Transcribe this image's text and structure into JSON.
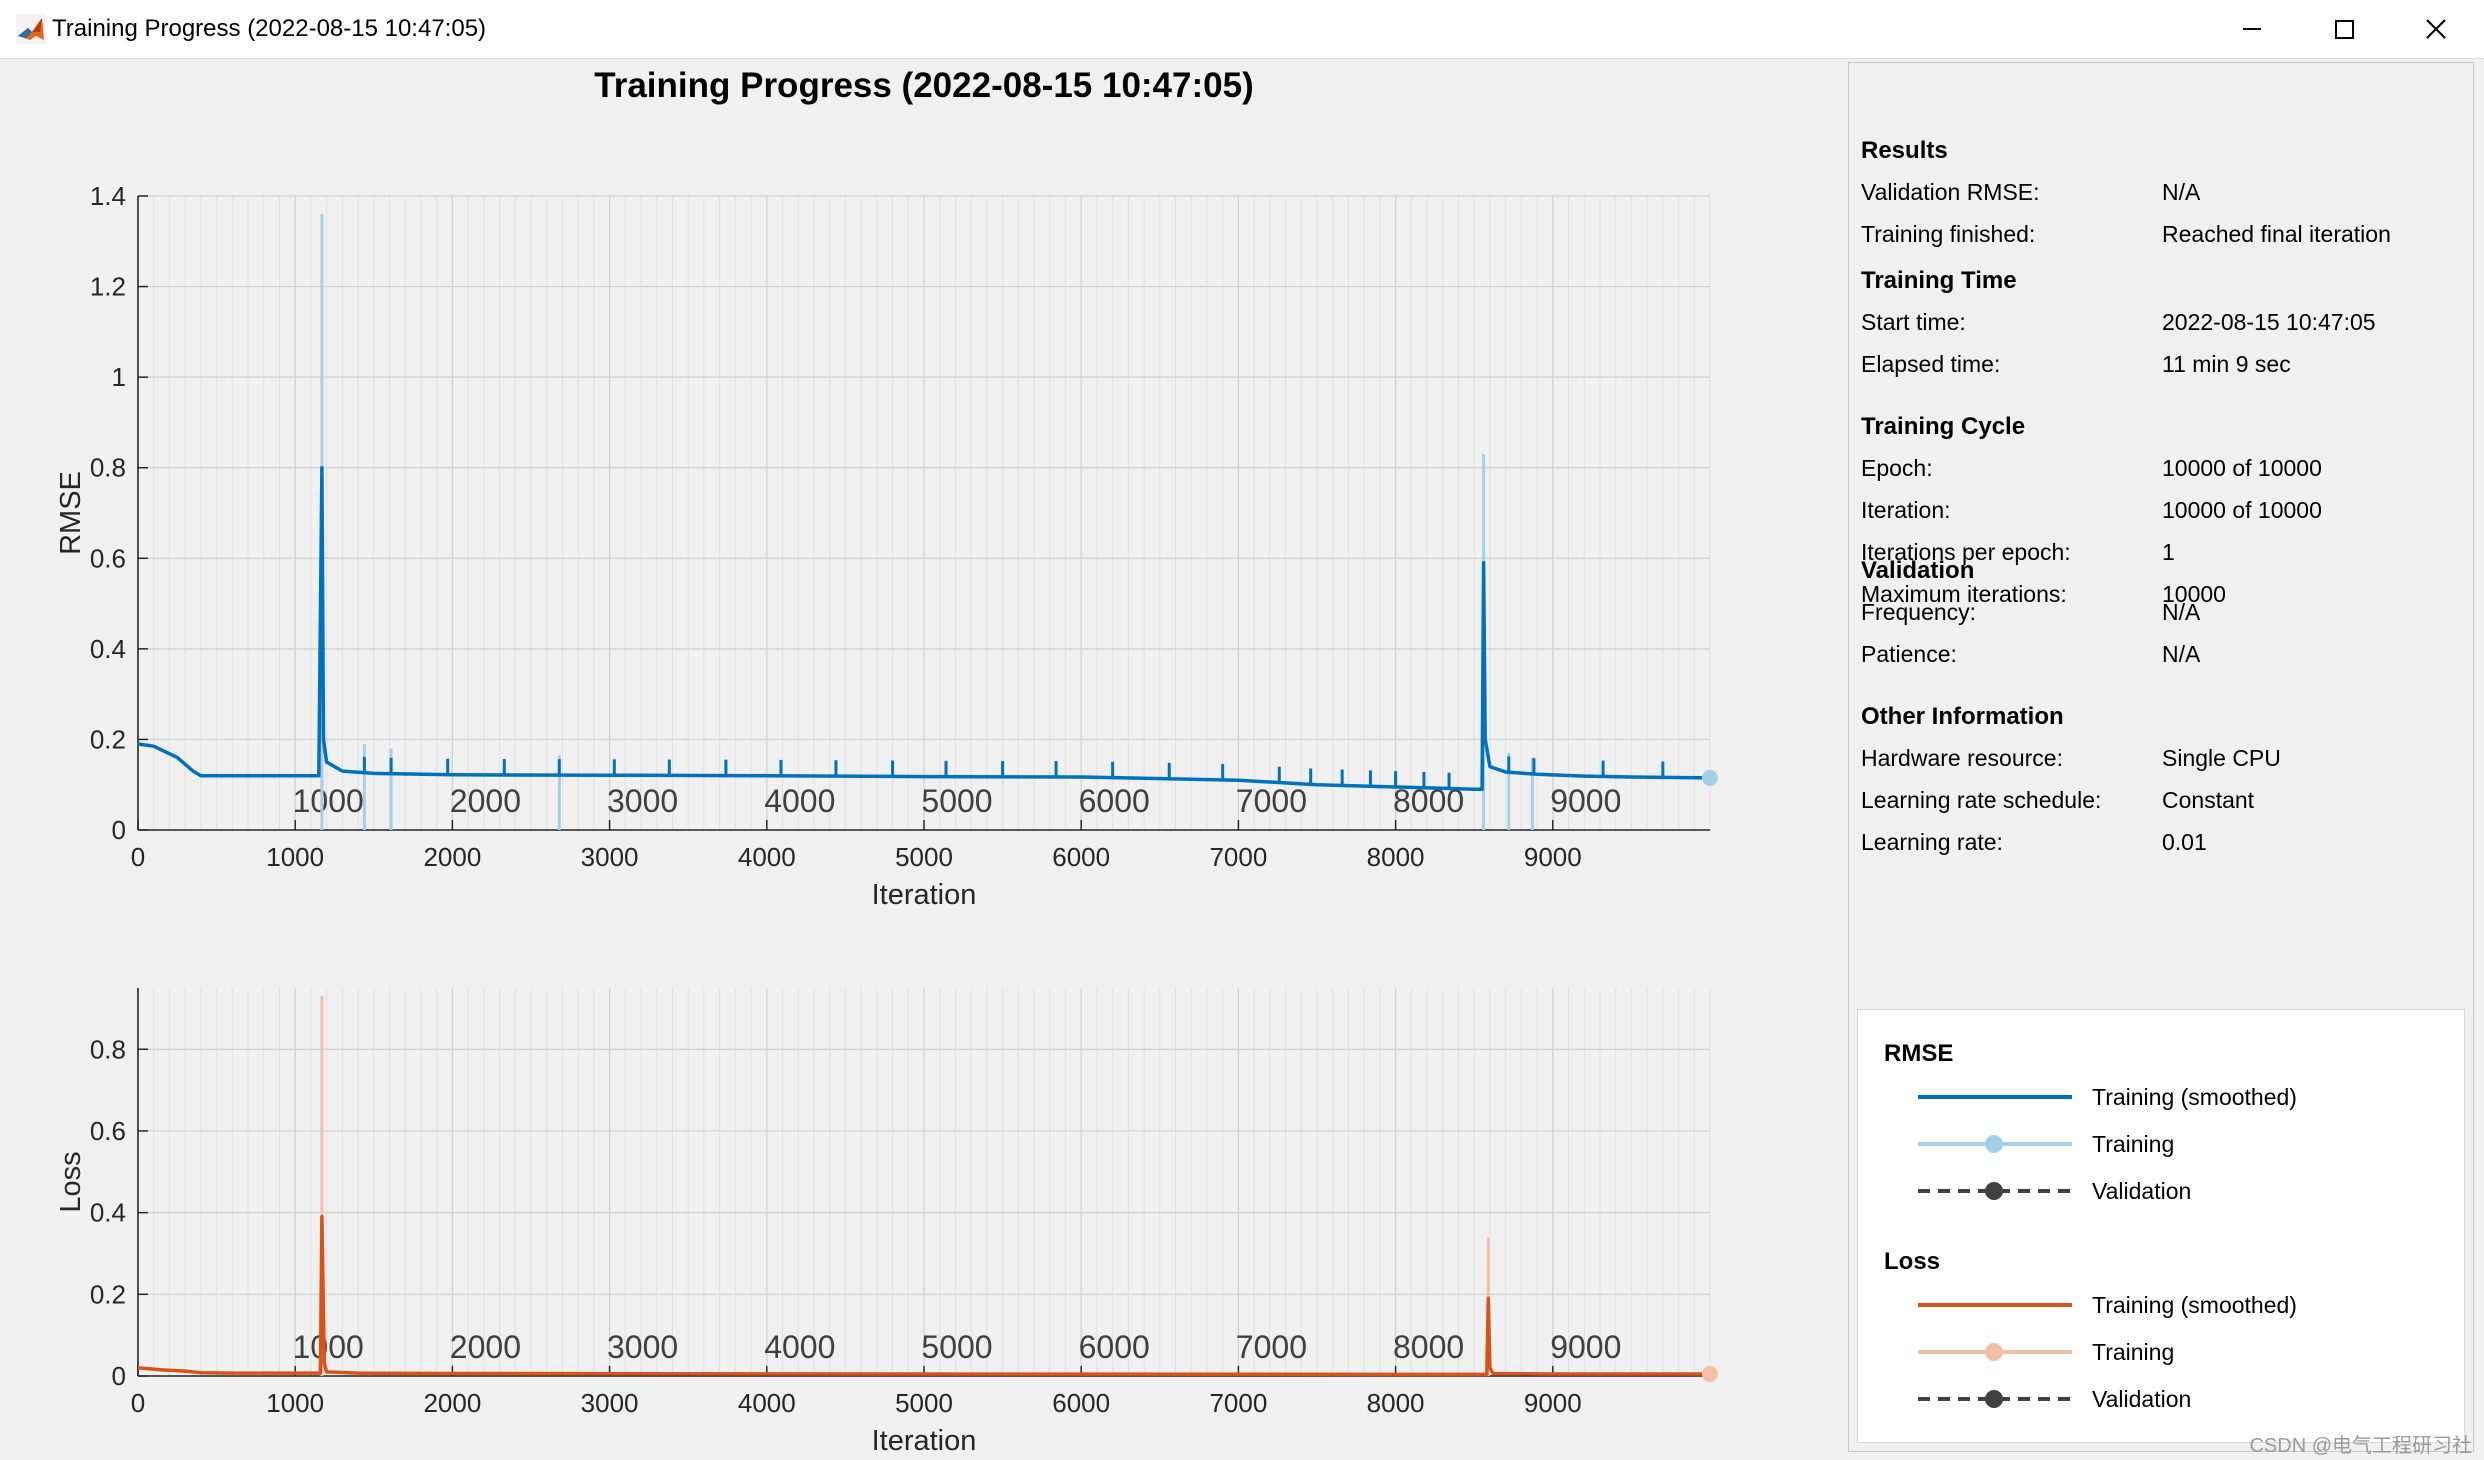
{
  "window": {
    "title": "Training Progress (2022-08-15 10:47:05)",
    "controls": [
      "minimize",
      "maximize",
      "close"
    ]
  },
  "figure": {
    "title": "Training Progress (2022-08-15 10:47:05)"
  },
  "results": {
    "sections": [
      {
        "title": "Results",
        "rows": [
          {
            "label": "Validation RMSE:",
            "value": "N/A"
          },
          {
            "label": "Training finished:",
            "value": "Reached final iteration"
          }
        ]
      },
      {
        "title": "Training Time",
        "rows": [
          {
            "label": "Start time:",
            "value": "2022-08-15 10:47:05"
          },
          {
            "label": "Elapsed time:",
            "value": "11 min 9 sec"
          }
        ]
      },
      {
        "title": "Training Cycle",
        "rows": [
          {
            "label": "Epoch:",
            "value": "10000 of 10000"
          },
          {
            "label": "Iteration:",
            "value": "10000 of 10000"
          },
          {
            "label": "Iterations per epoch:",
            "value": "1"
          },
          {
            "label": "Maximum iterations:",
            "value": "10000"
          }
        ]
      },
      {
        "title": "Validation",
        "rows": [
          {
            "label": "Frequency:",
            "value": "N/A"
          },
          {
            "label": "Patience:",
            "value": "N/A"
          }
        ]
      },
      {
        "title": "Other Information",
        "rows": [
          {
            "label": "Hardware resource:",
            "value": "Single CPU"
          },
          {
            "label": "Learning rate schedule:",
            "value": "Constant"
          },
          {
            "label": "Learning rate:",
            "value": "0.01"
          }
        ]
      }
    ]
  },
  "legend": {
    "groups": [
      {
        "title": "RMSE",
        "entries": [
          {
            "label": "Training (smoothed)",
            "style": "line",
            "color": "#0072bd"
          },
          {
            "label": "Training",
            "style": "line-marker",
            "color": "#a5cfe6"
          },
          {
            "label": "Validation",
            "style": "dashed-marker",
            "color": "#404040"
          }
        ]
      },
      {
        "title": "Loss",
        "entries": [
          {
            "label": "Training (smoothed)",
            "style": "line",
            "color": "#d95319"
          },
          {
            "label": "Training",
            "style": "line-marker",
            "color": "#f4bfa8"
          },
          {
            "label": "Validation",
            "style": "dashed-marker",
            "color": "#404040"
          }
        ]
      }
    ]
  },
  "watermark": "CSDN @电气工程研习社",
  "chart_data": [
    {
      "type": "line",
      "ylabel": "RMSE",
      "xlabel": "Iteration",
      "xlim": [
        0,
        10000
      ],
      "ylim": [
        0,
        1.4
      ],
      "yticks": [
        0,
        0.2,
        0.4,
        0.6,
        0.8,
        1,
        1.2,
        1.4
      ],
      "xticks": [
        0,
        1000,
        2000,
        3000,
        4000,
        5000,
        6000,
        7000,
        8000,
        9000
      ],
      "epoch_labels": [
        "1000",
        "2000",
        "3000",
        "4000",
        "5000",
        "6000",
        "7000",
        "8000",
        "9000"
      ],
      "grid": true,
      "series": [
        {
          "name": "Training (smoothed)",
          "color": "#0072bd",
          "x": [
            0,
            100,
            250,
            350,
            400,
            600,
            800,
            1000,
            1150,
            1170,
            1180,
            1200,
            1300,
            1500,
            2000,
            3000,
            4000,
            5000,
            6000,
            7000,
            7500,
            8000,
            8300,
            8500,
            8550,
            8560,
            8570,
            8600,
            8700,
            8900,
            9200,
            9500,
            10000
          ],
          "y": [
            0.19,
            0.185,
            0.16,
            0.13,
            0.12,
            0.12,
            0.12,
            0.12,
            0.12,
            0.8,
            0.2,
            0.15,
            0.13,
            0.125,
            0.122,
            0.121,
            0.12,
            0.118,
            0.117,
            0.11,
            0.1,
            0.095,
            0.092,
            0.09,
            0.09,
            0.59,
            0.2,
            0.14,
            0.128,
            0.123,
            0.119,
            0.117,
            0.115
          ]
        },
        {
          "name": "Training",
          "color": "#a5cfe6",
          "spikes": [
            {
              "x": 1170,
              "y": 1.36
            },
            {
              "x": 1440,
              "y": 0.19
            },
            {
              "x": 1610,
              "y": 0.18
            },
            {
              "x": 2680,
              "y": 0.165
            },
            {
              "x": 8560,
              "y": 0.83
            },
            {
              "x": 8720,
              "y": 0.17
            },
            {
              "x": 8870,
              "y": 0.16
            }
          ],
          "final": {
            "x": 10000,
            "y": 0.115
          }
        }
      ]
    },
    {
      "type": "line",
      "ylabel": "Loss",
      "xlabel": "Iteration",
      "xlim": [
        0,
        10000
      ],
      "ylim": [
        0,
        0.95
      ],
      "yticks": [
        0,
        0.2,
        0.4,
        0.6,
        0.8
      ],
      "xticks": [
        0,
        1000,
        2000,
        3000,
        4000,
        5000,
        6000,
        7000,
        8000,
        9000
      ],
      "epoch_labels": [
        "1000",
        "2000",
        "3000",
        "4000",
        "5000",
        "6000",
        "7000",
        "8000",
        "9000"
      ],
      "grid": true,
      "series": [
        {
          "name": "Training (smoothed)",
          "color": "#d95319",
          "x": [
            0,
            150,
            300,
            400,
            600,
            1000,
            1160,
            1170,
            1185,
            1200,
            1400,
            2000,
            5000,
            8000,
            8580,
            8590,
            8600,
            8620,
            9000,
            10000
          ],
          "y": [
            0.02,
            0.015,
            0.012,
            0.008,
            0.007,
            0.007,
            0.007,
            0.39,
            0.03,
            0.01,
            0.007,
            0.006,
            0.005,
            0.004,
            0.004,
            0.19,
            0.02,
            0.006,
            0.005,
            0.005
          ]
        },
        {
          "name": "Training",
          "color": "#f4bfa8",
          "spikes": [
            {
              "x": 1170,
              "y": 0.93
            },
            {
              "x": 8590,
              "y": 0.34
            }
          ],
          "final": {
            "x": 10000,
            "y": 0.005
          }
        }
      ]
    }
  ]
}
